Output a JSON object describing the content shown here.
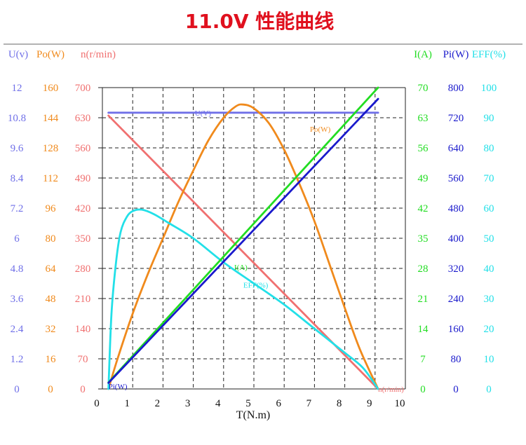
{
  "page_title": "11.0V 性能曲线",
  "chart_data": {
    "type": "line",
    "title": "11.0V 性能曲线",
    "xlabel": "T(N.m)",
    "xlim": [
      0,
      10
    ],
    "x_ticks": [
      "0",
      "1",
      "2",
      "3",
      "4",
      "5",
      "6",
      "7",
      "8",
      "9",
      "10"
    ],
    "grid": true,
    "left_axes": [
      {
        "key": "U",
        "header": "U(v)",
        "color": "#7070e8",
        "ticks": [
          "0",
          "1.2",
          "2.4",
          "3.6",
          "4.8",
          "6",
          "7.2",
          "8.4",
          "9.6",
          "10.8",
          "12"
        ],
        "range": [
          0,
          12
        ]
      },
      {
        "key": "Po",
        "header": "Po(W)",
        "color": "#f08a1c",
        "ticks": [
          "0",
          "16",
          "32",
          "48",
          "64",
          "80",
          "96",
          "112",
          "128",
          "144",
          "160"
        ],
        "range": [
          0,
          160
        ]
      },
      {
        "key": "n",
        "header": "n(r/min)",
        "color": "#f07070",
        "ticks": [
          "0",
          "70",
          "140",
          "210",
          "280",
          "350",
          "420",
          "490",
          "560",
          "630",
          "700"
        ],
        "range": [
          0,
          700
        ]
      }
    ],
    "right_axes": [
      {
        "key": "I",
        "header": "I(A)",
        "color": "#22dd22",
        "ticks": [
          "0",
          "7",
          "14",
          "21",
          "28",
          "35",
          "42",
          "49",
          "56",
          "63",
          "70"
        ],
        "range": [
          0,
          70
        ]
      },
      {
        "key": "Pi",
        "header": "Pi(W)",
        "color": "#1a1acc",
        "ticks": [
          "0",
          "80",
          "160",
          "240",
          "320",
          "400",
          "480",
          "560",
          "640",
          "720",
          "800"
        ],
        "range": [
          0,
          800
        ]
      },
      {
        "key": "EFF",
        "header": "EFF(%)",
        "color": "#22e0e8",
        "ticks": [
          "0",
          "10",
          "20",
          "30",
          "40",
          "50",
          "60",
          "70",
          "80",
          "90",
          "100"
        ],
        "range": [
          0,
          100
        ]
      }
    ],
    "series": [
      {
        "key": "U",
        "name": "U(V)",
        "axis": "U",
        "color": "#7070e8",
        "points": [
          [
            0.2,
            11.0
          ],
          [
            9.1,
            11.0
          ]
        ]
      },
      {
        "key": "n",
        "name": "n(r/min)",
        "axis": "n",
        "color": "#f07070",
        "points": [
          [
            0.2,
            635
          ],
          [
            9.1,
            0
          ]
        ]
      },
      {
        "key": "I",
        "name": "I(A)",
        "axis": "I",
        "color": "#22dd22",
        "points": [
          [
            0.2,
            1.5
          ],
          [
            9.1,
            70
          ]
        ]
      },
      {
        "key": "Pi",
        "name": "Pi(W)",
        "axis": "Pi",
        "color": "#1a1acc",
        "points": [
          [
            0.2,
            16
          ],
          [
            9.1,
            770
          ]
        ]
      },
      {
        "key": "Po",
        "name": "Po(W)",
        "axis": "Po",
        "color": "#f08a1c",
        "points": [
          [
            0.2,
            0
          ],
          [
            0.5,
            16
          ],
          [
            1,
            40
          ],
          [
            1.5,
            61
          ],
          [
            2,
            80
          ],
          [
            2.5,
            99
          ],
          [
            3,
            116
          ],
          [
            3.5,
            132
          ],
          [
            4,
            144
          ],
          [
            4.4,
            150
          ],
          [
            4.65,
            151
          ],
          [
            5,
            149
          ],
          [
            5.5,
            141
          ],
          [
            6,
            127
          ],
          [
            6.5,
            109
          ],
          [
            7,
            89
          ],
          [
            7.5,
            66
          ],
          [
            8,
            43
          ],
          [
            8.5,
            21
          ],
          [
            9.1,
            0
          ]
        ]
      },
      {
        "key": "EFF",
        "name": "EFF(%)",
        "axis": "EFF",
        "color": "#22e0e8",
        "points": [
          [
            0.2,
            0
          ],
          [
            0.3,
            25
          ],
          [
            0.45,
            42
          ],
          [
            0.6,
            52
          ],
          [
            0.8,
            57
          ],
          [
            1,
            59
          ],
          [
            1.3,
            59.5
          ],
          [
            1.7,
            58
          ],
          [
            2.2,
            55
          ],
          [
            3,
            50
          ],
          [
            4,
            42
          ],
          [
            5,
            35
          ],
          [
            6,
            28
          ],
          [
            7,
            20
          ],
          [
            8,
            12
          ],
          [
            8.6,
            7
          ],
          [
            9.1,
            0
          ]
        ]
      }
    ],
    "curve_labels": [
      {
        "key": "U",
        "text": "U(V)",
        "at": [
          3.05,
          11.0
        ]
      },
      {
        "key": "Po",
        "text": "Po(W)",
        "at": [
          6.85,
          138
        ]
      },
      {
        "key": "I",
        "text": "I(A)",
        "at": [
          4.35,
          28.3
        ]
      },
      {
        "key": "EFF",
        "text": "EFF(%)",
        "at": [
          4.65,
          34.5
        ]
      },
      {
        "key": "Pi",
        "text": "Pi(W)",
        "at": [
          0.2,
          7
        ]
      },
      {
        "key": "n",
        "text": "n(r/min)",
        "at": [
          9.1,
          0
        ]
      }
    ]
  }
}
